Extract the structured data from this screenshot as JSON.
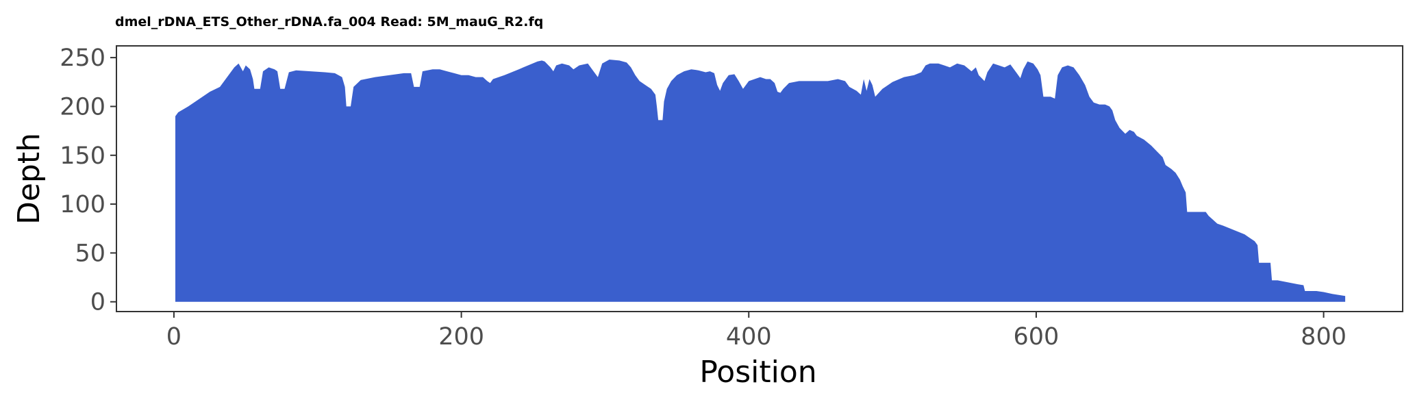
{
  "chart_data": {
    "type": "area",
    "title": "dmel_rDNA_ETS_Other_rDNA.fa_004 Read: 5M_mauG_R2.fq",
    "xlabel": "Position",
    "ylabel": "Depth",
    "xlim": [
      -40,
      855
    ],
    "ylim": [
      -10,
      262
    ],
    "x_ticks": [
      0,
      200,
      400,
      600,
      800
    ],
    "y_ticks": [
      0,
      50,
      100,
      150,
      200,
      250
    ],
    "grid": false,
    "legend": "none",
    "fill_color": "#3a5fcd",
    "points": [
      [
        1,
        0
      ],
      [
        1,
        190
      ],
      [
        3,
        194
      ],
      [
        10,
        200
      ],
      [
        18,
        208
      ],
      [
        25,
        215
      ],
      [
        32,
        220
      ],
      [
        37,
        230
      ],
      [
        42,
        240
      ],
      [
        45,
        244
      ],
      [
        48,
        236
      ],
      [
        50,
        242
      ],
      [
        53,
        238
      ],
      [
        55,
        228
      ],
      [
        56,
        218
      ],
      [
        60,
        218
      ],
      [
        62,
        236
      ],
      [
        66,
        240
      ],
      [
        70,
        238
      ],
      [
        72,
        236
      ],
      [
        74,
        218
      ],
      [
        77,
        218
      ],
      [
        80,
        235
      ],
      [
        85,
        237
      ],
      [
        95,
        236
      ],
      [
        105,
        235
      ],
      [
        112,
        234
      ],
      [
        117,
        230
      ],
      [
        119,
        220
      ],
      [
        120,
        200
      ],
      [
        123,
        200
      ],
      [
        125,
        220
      ],
      [
        130,
        227
      ],
      [
        140,
        230
      ],
      [
        150,
        232
      ],
      [
        160,
        234
      ],
      [
        165,
        234
      ],
      [
        167,
        220
      ],
      [
        171,
        220
      ],
      [
        173,
        236
      ],
      [
        180,
        238
      ],
      [
        185,
        238
      ],
      [
        190,
        236
      ],
      [
        195,
        234
      ],
      [
        200,
        232
      ],
      [
        205,
        232
      ],
      [
        210,
        230
      ],
      [
        215,
        230
      ],
      [
        218,
        226
      ],
      [
        220,
        224
      ],
      [
        222,
        228
      ],
      [
        230,
        232
      ],
      [
        240,
        238
      ],
      [
        248,
        243
      ],
      [
        253,
        246
      ],
      [
        256,
        247
      ],
      [
        258,
        246
      ],
      [
        262,
        240
      ],
      [
        264,
        236
      ],
      [
        266,
        242
      ],
      [
        270,
        244
      ],
      [
        275,
        242
      ],
      [
        278,
        238
      ],
      [
        282,
        242
      ],
      [
        288,
        244
      ],
      [
        292,
        236
      ],
      [
        295,
        230
      ],
      [
        298,
        244
      ],
      [
        303,
        248
      ],
      [
        310,
        247
      ],
      [
        315,
        245
      ],
      [
        318,
        240
      ],
      [
        321,
        232
      ],
      [
        324,
        226
      ],
      [
        328,
        222
      ],
      [
        332,
        218
      ],
      [
        335,
        212
      ],
      [
        336,
        200
      ],
      [
        337,
        186
      ],
      [
        340,
        186
      ],
      [
        341,
        205
      ],
      [
        343,
        218
      ],
      [
        346,
        226
      ],
      [
        350,
        232
      ],
      [
        355,
        236
      ],
      [
        360,
        238
      ],
      [
        365,
        237
      ],
      [
        370,
        235
      ],
      [
        373,
        236
      ],
      [
        376,
        234
      ],
      [
        378,
        222
      ],
      [
        380,
        216
      ],
      [
        382,
        224
      ],
      [
        386,
        232
      ],
      [
        390,
        233
      ],
      [
        393,
        226
      ],
      [
        396,
        218
      ],
      [
        400,
        226
      ],
      [
        404,
        228
      ],
      [
        408,
        230
      ],
      [
        412,
        228
      ],
      [
        415,
        228
      ],
      [
        418,
        224
      ],
      [
        420,
        215
      ],
      [
        422,
        214
      ],
      [
        424,
        218
      ],
      [
        428,
        224
      ],
      [
        435,
        226
      ],
      [
        445,
        226
      ],
      [
        455,
        226
      ],
      [
        462,
        228
      ],
      [
        467,
        226
      ],
      [
        470,
        220
      ],
      [
        475,
        216
      ],
      [
        478,
        212
      ],
      [
        480,
        228
      ],
      [
        482,
        216
      ],
      [
        484,
        228
      ],
      [
        486,
        222
      ],
      [
        488,
        210
      ],
      [
        493,
        218
      ],
      [
        500,
        225
      ],
      [
        508,
        230
      ],
      [
        515,
        232
      ],
      [
        520,
        235
      ],
      [
        523,
        242
      ],
      [
        526,
        244
      ],
      [
        532,
        244
      ],
      [
        536,
        242
      ],
      [
        540,
        240
      ],
      [
        545,
        244
      ],
      [
        550,
        242
      ],
      [
        555,
        236
      ],
      [
        558,
        240
      ],
      [
        560,
        232
      ],
      [
        564,
        226
      ],
      [
        566,
        235
      ],
      [
        570,
        244
      ],
      [
        574,
        242
      ],
      [
        578,
        240
      ],
      [
        582,
        243
      ],
      [
        586,
        235
      ],
      [
        589,
        229
      ],
      [
        591,
        238
      ],
      [
        594,
        246
      ],
      [
        598,
        244
      ],
      [
        601,
        238
      ],
      [
        603,
        232
      ],
      [
        605,
        210
      ],
      [
        610,
        210
      ],
      [
        613,
        208
      ],
      [
        615,
        232
      ],
      [
        618,
        240
      ],
      [
        622,
        242
      ],
      [
        626,
        240
      ],
      [
        630,
        232
      ],
      [
        634,
        222
      ],
      [
        637,
        210
      ],
      [
        640,
        204
      ],
      [
        644,
        202
      ],
      [
        648,
        202
      ],
      [
        651,
        200
      ],
      [
        653,
        196
      ],
      [
        655,
        186
      ],
      [
        658,
        178
      ],
      [
        662,
        172
      ],
      [
        665,
        176
      ],
      [
        668,
        174
      ],
      [
        670,
        170
      ],
      [
        675,
        166
      ],
      [
        680,
        160
      ],
      [
        684,
        154
      ],
      [
        688,
        148
      ],
      [
        690,
        140
      ],
      [
        694,
        136
      ],
      [
        697,
        132
      ],
      [
        700,
        125
      ],
      [
        702,
        118
      ],
      [
        704,
        112
      ],
      [
        705,
        92
      ],
      [
        718,
        92
      ],
      [
        720,
        88
      ],
      [
        723,
        84
      ],
      [
        726,
        80
      ],
      [
        730,
        78
      ],
      [
        735,
        75
      ],
      [
        740,
        72
      ],
      [
        745,
        69
      ],
      [
        748,
        66
      ],
      [
        752,
        62
      ],
      [
        754,
        58
      ],
      [
        755,
        40
      ],
      [
        763,
        40
      ],
      [
        764,
        22
      ],
      [
        768,
        22
      ],
      [
        775,
        20
      ],
      [
        782,
        18
      ],
      [
        786,
        17
      ],
      [
        787,
        11
      ],
      [
        795,
        11
      ],
      [
        800,
        10
      ],
      [
        806,
        8
      ],
      [
        815,
        6
      ],
      [
        815,
        0
      ]
    ]
  }
}
